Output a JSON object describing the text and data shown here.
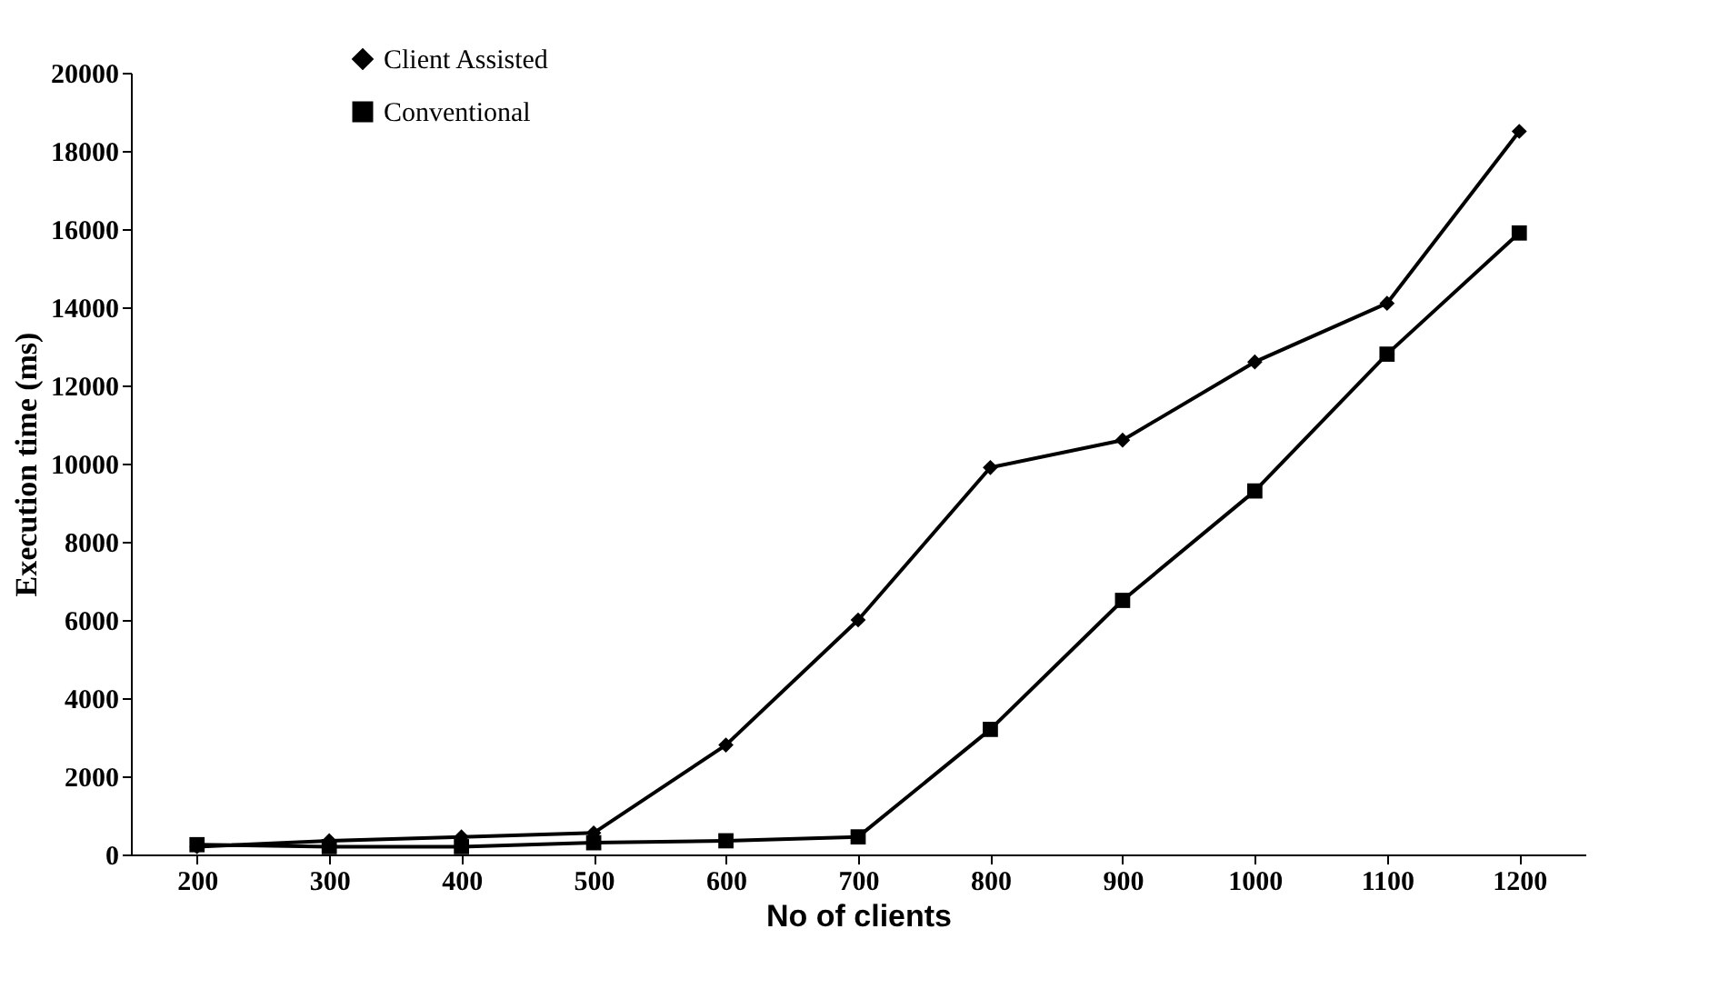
{
  "chart_data": {
    "type": "line",
    "xlabel": "No of clients",
    "ylabel": "Execution time (ms)",
    "categories": [
      "200",
      "300",
      "400",
      "500",
      "600",
      "700",
      "800",
      "900",
      "1000",
      "1100",
      "1200"
    ],
    "series": [
      {
        "name": "Client Assisted",
        "color": "#000000",
        "marker": "diamond",
        "values": [
          200,
          350,
          450,
          550,
          2800,
          6000,
          9900,
          10600,
          12600,
          14100,
          18500
        ]
      },
      {
        "name": "Conventional",
        "color": "#000000",
        "marker": "square",
        "values": [
          250,
          200,
          200,
          300,
          350,
          450,
          3200,
          6500,
          9300,
          12800,
          15900
        ]
      }
    ],
    "ylim": [
      0,
      20000
    ],
    "yticks": [
      0,
      2000,
      4000,
      6000,
      8000,
      10000,
      12000,
      14000,
      16000,
      18000,
      20000
    ],
    "grid": false,
    "legend": "top",
    "line_style": "solid"
  }
}
